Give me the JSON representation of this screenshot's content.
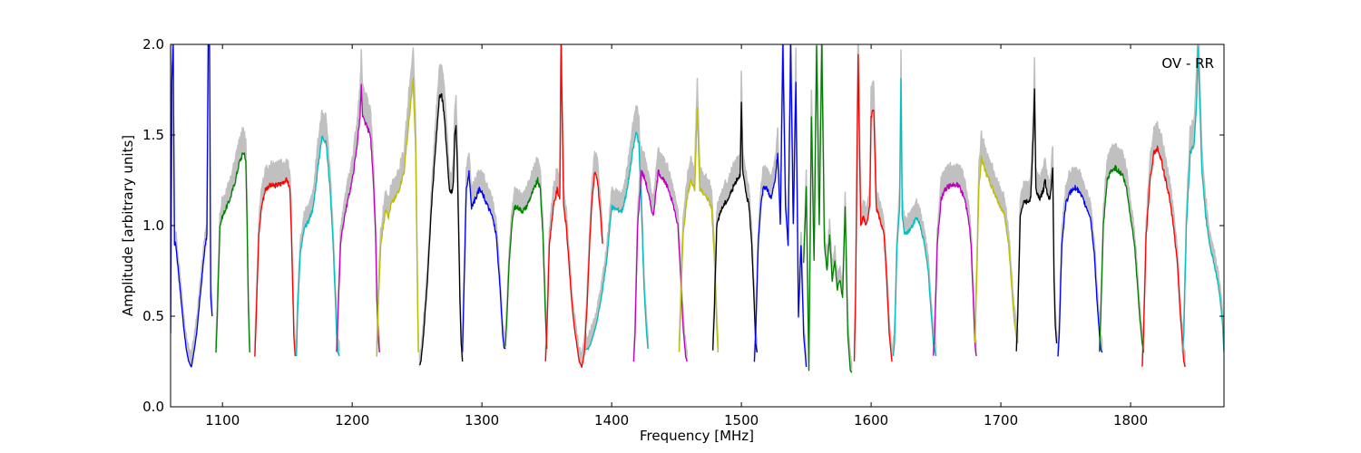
{
  "chart_data": {
    "type": "line",
    "title": "",
    "annotation": "OV - RR",
    "xlabel": "Frequency [MHz]",
    "ylabel": "Amplitude [arbitrary units]",
    "xlim": [
      1060,
      1872
    ],
    "ylim": [
      0.0,
      2.0
    ],
    "xticks": [
      1100,
      1200,
      1300,
      1400,
      1500,
      1600,
      1700,
      1800
    ],
    "yticks": [
      0.0,
      0.5,
      1.0,
      1.5,
      2.0
    ],
    "xtick_labels": [
      "1100",
      "1200",
      "1300",
      "1400",
      "1500",
      "1600",
      "1700",
      "1800"
    ],
    "ytick_labels": [
      "0.0",
      "0.5",
      "1.0",
      "1.5",
      "2.0"
    ],
    "grid": false,
    "legend": "none",
    "background_color": "#c0c0c0",
    "series": [
      {
        "color": "#0000ff",
        "start": 1060,
        "end": 1092,
        "x": [
          1060,
          1061,
          1062,
          1063,
          1064,
          1066,
          1068,
          1070,
          1072,
          1074,
          1076,
          1078,
          1080,
          1082,
          1084,
          1086,
          1088,
          1089,
          1090,
          1091,
          1092
        ],
        "y": [
          0.4,
          1.8,
          2.0,
          0.9,
          0.9,
          0.75,
          0.6,
          0.45,
          0.32,
          0.25,
          0.22,
          0.3,
          0.4,
          0.55,
          0.7,
          0.85,
          0.95,
          2.0,
          2.0,
          0.6,
          0.5
        ]
      },
      {
        "color": "#008000",
        "start": 1095,
        "end": 1121,
        "x": [
          1095,
          1096,
          1098,
          1100,
          1103,
          1106,
          1110,
          1113,
          1116,
          1117,
          1118,
          1119,
          1120,
          1121
        ],
        "y": [
          0.3,
          0.5,
          1.0,
          1.05,
          1.1,
          1.15,
          1.25,
          1.35,
          1.4,
          1.4,
          1.35,
          1.0,
          0.55,
          0.3
        ]
      },
      {
        "color": "#ff0000",
        "start": 1125,
        "end": 1156,
        "x": [
          1125,
          1126,
          1128,
          1130,
          1133,
          1136,
          1140,
          1145,
          1148,
          1150,
          1152,
          1153,
          1154,
          1155,
          1156
        ],
        "y": [
          0.28,
          0.5,
          0.95,
          1.1,
          1.2,
          1.22,
          1.22,
          1.23,
          1.25,
          1.25,
          1.2,
          1.0,
          0.7,
          0.4,
          0.28
        ]
      },
      {
        "color": "#00bfbf",
        "start": 1157,
        "end": 1190,
        "x": [
          1157,
          1158,
          1160,
          1163,
          1166,
          1170,
          1174,
          1177,
          1180,
          1183,
          1185,
          1187,
          1188,
          1189,
          1190
        ],
        "y": [
          0.28,
          0.55,
          0.85,
          0.98,
          1.02,
          1.1,
          1.35,
          1.5,
          1.45,
          1.2,
          0.95,
          0.6,
          0.4,
          0.3,
          0.28
        ]
      },
      {
        "color": "#bf00bf",
        "start": 1188,
        "end": 1221,
        "x": [
          1188,
          1189,
          1191,
          1194,
          1197,
          1200,
          1203,
          1206,
          1207,
          1208,
          1211,
          1214,
          1216,
          1218,
          1219,
          1220,
          1221
        ],
        "y": [
          0.3,
          0.5,
          0.9,
          1.05,
          1.15,
          1.25,
          1.4,
          1.6,
          1.77,
          1.6,
          1.55,
          1.5,
          1.3,
          0.95,
          0.6,
          0.4,
          0.3
        ]
      },
      {
        "color": "#bfbf00",
        "start": 1219,
        "end": 1251,
        "x": [
          1219,
          1220,
          1222,
          1224,
          1226,
          1228,
          1230,
          1233,
          1236,
          1240,
          1244,
          1247,
          1249,
          1250,
          1251
        ],
        "y": [
          0.28,
          0.55,
          0.9,
          1.0,
          1.1,
          1.05,
          1.12,
          1.15,
          1.2,
          1.3,
          1.6,
          1.8,
          1.4,
          0.8,
          0.3
        ]
      },
      {
        "color": "#000000",
        "start": 1252,
        "end": 1285,
        "x": [
          1252,
          1253,
          1255,
          1258,
          1261,
          1264,
          1267,
          1269,
          1271,
          1273,
          1275,
          1277,
          1278,
          1279,
          1280,
          1281,
          1282,
          1283,
          1284,
          1285
        ],
        "y": [
          0.23,
          0.25,
          0.4,
          0.7,
          1.1,
          1.4,
          1.7,
          1.72,
          1.6,
          1.4,
          1.2,
          1.18,
          1.25,
          1.5,
          1.55,
          1.35,
          1.0,
          0.6,
          0.35,
          0.25
        ]
      },
      {
        "color": "#0000ff",
        "start": 1285,
        "end": 1318,
        "x": [
          1285,
          1286,
          1288,
          1290,
          1292,
          1295,
          1298,
          1300,
          1302,
          1305,
          1308,
          1311,
          1314,
          1316,
          1317,
          1318
        ],
        "y": [
          0.3,
          0.6,
          1.2,
          1.3,
          1.1,
          1.15,
          1.2,
          1.18,
          1.15,
          1.1,
          1.05,
          0.95,
          0.65,
          0.4,
          0.33,
          0.32
        ]
      },
      {
        "color": "#008000",
        "start": 1318,
        "end": 1350,
        "x": [
          1318,
          1319,
          1321,
          1323,
          1325,
          1328,
          1331,
          1334,
          1337,
          1340,
          1343,
          1345,
          1347,
          1349,
          1350
        ],
        "y": [
          0.33,
          0.45,
          0.8,
          1.0,
          1.1,
          1.1,
          1.08,
          1.1,
          1.15,
          1.2,
          1.25,
          1.2,
          0.95,
          0.5,
          0.32
        ]
      },
      {
        "color": "#ff0000",
        "start": 1349,
        "end": 1393,
        "x": [
          1349,
          1350,
          1352,
          1355,
          1358,
          1360,
          1361,
          1363,
          1365,
          1367,
          1369,
          1371,
          1373,
          1375,
          1377,
          1379,
          1381,
          1383,
          1385,
          1387,
          1389,
          1391,
          1393
        ],
        "y": [
          0.25,
          0.4,
          0.9,
          1.1,
          1.2,
          1.15,
          2.0,
          1.1,
          1.0,
          0.8,
          0.6,
          0.45,
          0.35,
          0.25,
          0.22,
          0.3,
          0.55,
          0.9,
          1.15,
          1.3,
          1.25,
          1.1,
          0.9
        ]
      },
      {
        "color": "#00bfbf",
        "start": 1380,
        "end": 1428,
        "x": [
          1380,
          1382,
          1384,
          1386,
          1388,
          1392,
          1396,
          1400,
          1404,
          1408,
          1412,
          1416,
          1419,
          1421,
          1423,
          1425,
          1427,
          1428
        ],
        "y": [
          0.32,
          0.32,
          0.35,
          0.4,
          0.45,
          0.6,
          0.8,
          1.1,
          1.09,
          1.08,
          1.2,
          1.4,
          1.52,
          1.45,
          1.1,
          0.65,
          0.4,
          0.32
        ]
      },
      {
        "color": "#bf00bf",
        "start": 1417,
        "end": 1458,
        "x": [
          1417,
          1418,
          1420,
          1423,
          1426,
          1429,
          1432,
          1436,
          1440,
          1444,
          1448,
          1451,
          1453,
          1455,
          1457,
          1458
        ],
        "y": [
          0.25,
          0.4,
          1.0,
          1.3,
          1.25,
          1.15,
          1.05,
          1.3,
          1.25,
          1.2,
          1.1,
          1.0,
          0.75,
          0.45,
          0.28,
          0.25
        ]
      },
      {
        "color": "#bfbf00",
        "start": 1452,
        "end": 1482,
        "x": [
          1452,
          1453,
          1455,
          1458,
          1461,
          1464,
          1466,
          1468,
          1471,
          1474,
          1477,
          1479,
          1481,
          1482
        ],
        "y": [
          0.3,
          0.5,
          0.95,
          1.15,
          1.25,
          1.2,
          1.65,
          1.2,
          1.18,
          1.15,
          1.1,
          0.85,
          0.45,
          0.3
        ]
      },
      {
        "color": "#000000",
        "start": 1478,
        "end": 1512,
        "x": [
          1478,
          1479,
          1481,
          1484,
          1487,
          1490,
          1493,
          1496,
          1499,
          1500,
          1501,
          1503,
          1506,
          1508,
          1510,
          1511,
          1512
        ],
        "y": [
          0.31,
          0.5,
          1.0,
          1.08,
          1.12,
          1.15,
          1.2,
          1.25,
          1.28,
          1.67,
          1.3,
          1.2,
          1.1,
          0.9,
          0.55,
          0.35,
          0.3
        ]
      },
      {
        "color": "#0000ff",
        "start": 1510,
        "end": 1550,
        "x": [
          1510,
          1511,
          1513,
          1515,
          1517,
          1520,
          1523,
          1526,
          1528,
          1530,
          1532,
          1534,
          1536,
          1538,
          1540,
          1542,
          1544,
          1546,
          1548,
          1550
        ],
        "y": [
          0.25,
          0.4,
          0.9,
          1.1,
          1.22,
          1.2,
          1.15,
          1.25,
          1.4,
          1.0,
          2.0,
          1.1,
          0.9,
          2.0,
          1.0,
          1.8,
          0.5,
          0.9,
          0.4,
          0.22
        ]
      },
      {
        "color": "#008000",
        "start": 1548,
        "end": 1585,
        "x": [
          1548,
          1550,
          1552,
          1554,
          1556,
          1558,
          1560,
          1562,
          1564,
          1566,
          1568,
          1570,
          1572,
          1574,
          1576,
          1578,
          1580,
          1582,
          1584,
          1585
        ],
        "y": [
          0.8,
          1.2,
          0.2,
          1.6,
          0.8,
          2.0,
          1.0,
          2.0,
          0.9,
          0.75,
          0.95,
          0.7,
          0.8,
          0.65,
          0.7,
          0.6,
          1.1,
          0.4,
          0.2,
          0.19
        ]
      },
      {
        "color": "#ff0000",
        "start": 1587,
        "end": 1616,
        "x": [
          1587,
          1588,
          1590,
          1592,
          1594,
          1596,
          1599,
          1600,
          1602,
          1604,
          1606,
          1608,
          1610,
          1612,
          1614,
          1616
        ],
        "y": [
          0.25,
          0.6,
          1.95,
          1.0,
          1.05,
          1.0,
          1.1,
          1.6,
          1.65,
          1.1,
          1.05,
          1.0,
          0.95,
          0.7,
          0.4,
          0.25
        ]
      },
      {
        "color": "#00bfbf",
        "start": 1617,
        "end": 1650,
        "x": [
          1617,
          1618,
          1620,
          1622,
          1623,
          1624,
          1626,
          1629,
          1632,
          1635,
          1638,
          1641,
          1644,
          1646,
          1648,
          1650
        ],
        "y": [
          0.28,
          0.35,
          0.9,
          1.1,
          1.8,
          1.05,
          0.95,
          0.97,
          1.0,
          1.05,
          1.0,
          0.9,
          0.75,
          0.55,
          0.35,
          0.28
        ]
      },
      {
        "color": "#bf00bf",
        "start": 1648,
        "end": 1681,
        "x": [
          1648,
          1649,
          1651,
          1654,
          1657,
          1660,
          1663,
          1666,
          1669,
          1672,
          1675,
          1677,
          1679,
          1680,
          1681
        ],
        "y": [
          0.28,
          0.4,
          0.9,
          1.15,
          1.2,
          1.22,
          1.22,
          1.23,
          1.2,
          1.15,
          1.05,
          0.9,
          0.55,
          0.35,
          0.28
        ]
      },
      {
        "color": "#bfbf00",
        "start": 1680,
        "end": 1713,
        "x": [
          1680,
          1681,
          1683,
          1685,
          1688,
          1691,
          1694,
          1697,
          1700,
          1703,
          1706,
          1708,
          1710,
          1712,
          1713
        ],
        "y": [
          0.35,
          0.6,
          1.2,
          1.38,
          1.3,
          1.25,
          1.2,
          1.15,
          1.1,
          1.05,
          0.9,
          0.7,
          0.5,
          0.38,
          0.35
        ]
      },
      {
        "color": "#000000",
        "start": 1712,
        "end": 1743,
        "x": [
          1712,
          1713,
          1715,
          1717,
          1720,
          1723,
          1725,
          1726,
          1727,
          1730,
          1733,
          1734,
          1736,
          1738,
          1740,
          1741,
          1742,
          1743
        ],
        "y": [
          0.31,
          0.5,
          1.05,
          1.12,
          1.13,
          1.15,
          1.5,
          1.75,
          1.2,
          1.15,
          1.2,
          1.25,
          1.17,
          1.15,
          1.33,
          0.7,
          0.45,
          0.35
        ]
      },
      {
        "color": "#0000ff",
        "start": 1744,
        "end": 1778,
        "x": [
          1744,
          1745,
          1747,
          1750,
          1753,
          1756,
          1758,
          1760,
          1763,
          1766,
          1769,
          1772,
          1774,
          1776,
          1777,
          1778
        ],
        "y": [
          0.28,
          0.4,
          0.9,
          1.12,
          1.18,
          1.2,
          1.21,
          1.19,
          1.15,
          1.1,
          1.05,
          0.85,
          0.6,
          0.4,
          0.32,
          0.3
        ]
      },
      {
        "color": "#008000",
        "start": 1776,
        "end": 1810,
        "x": [
          1776,
          1777,
          1779,
          1782,
          1785,
          1788,
          1791,
          1794,
          1797,
          1800,
          1803,
          1805,
          1807,
          1809,
          1810
        ],
        "y": [
          0.3,
          0.5,
          1.0,
          1.25,
          1.3,
          1.32,
          1.3,
          1.28,
          1.2,
          1.05,
          0.9,
          0.7,
          0.5,
          0.35,
          0.3
        ]
      },
      {
        "color": "#ff0000",
        "start": 1809,
        "end": 1842,
        "x": [
          1809,
          1810,
          1812,
          1815,
          1818,
          1821,
          1824,
          1827,
          1830,
          1833,
          1836,
          1838,
          1840,
          1841,
          1842
        ],
        "y": [
          0.22,
          0.4,
          0.95,
          1.25,
          1.4,
          1.43,
          1.35,
          1.25,
          1.15,
          1.0,
          0.8,
          0.55,
          0.35,
          0.25,
          0.22
        ]
      },
      {
        "color": "#00bfbf",
        "start": 1840,
        "end": 1872,
        "x": [
          1840,
          1841,
          1843,
          1846,
          1849,
          1851,
          1852,
          1855,
          1858,
          1861,
          1864,
          1867,
          1869,
          1871,
          1872
        ],
        "y": [
          0.3,
          0.4,
          1.0,
          1.4,
          1.45,
          1.7,
          2.0,
          1.3,
          1.05,
          0.9,
          0.8,
          0.7,
          0.6,
          0.45,
          0.3
        ]
      }
    ]
  }
}
